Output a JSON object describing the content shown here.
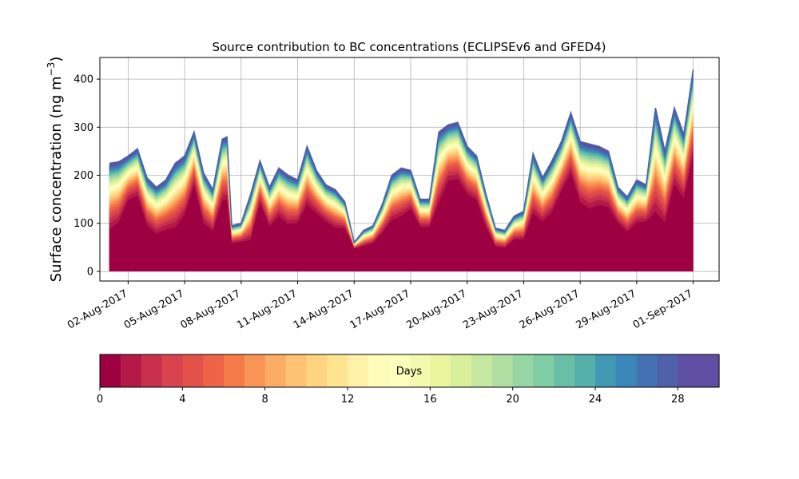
{
  "chart_data": [
    {
      "type": "area",
      "stacked": true,
      "title": "Source contribution to BC concentrations (ECLIPSEv6 and GFED4)",
      "ylabel": "Surface concentration (ng m",
      "ylabel_superscript": "−3",
      "ylabel_close": ")",
      "ylim": [
        -20,
        445
      ],
      "y_ticks": [
        "0",
        "100",
        "200",
        "300",
        "400"
      ],
      "y_tick_values": [
        0,
        100,
        200,
        300,
        400
      ],
      "x_ticks": [
        "02-Aug-2017",
        "05-Aug-2017",
        "08-Aug-2017",
        "11-Aug-2017",
        "14-Aug-2017",
        "17-Aug-2017",
        "20-Aug-2017",
        "23-Aug-2017",
        "26-Aug-2017",
        "29-Aug-2017",
        "01-Sep-2017"
      ],
      "x_tick_dates": [
        "2017-08-02",
        "2017-08-05",
        "2017-08-08",
        "2017-08-11",
        "2017-08-14",
        "2017-08-17",
        "2017-08-20",
        "2017-08-23",
        "2017-08-26",
        "2017-08-29",
        "2017-09-01"
      ],
      "xlim": [
        "2017-07-31T12:00",
        "2017-09-02T09:00"
      ],
      "grid": true,
      "series_layers": 30,
      "total": {
        "x": [
          "2017-08-01T00:00",
          "2017-08-01T12:00",
          "2017-08-02T00:00",
          "2017-08-02T12:00",
          "2017-08-03T00:00",
          "2017-08-03T12:00",
          "2017-08-04T00:00",
          "2017-08-04T12:00",
          "2017-08-05T00:00",
          "2017-08-05T12:00",
          "2017-08-06T00:00",
          "2017-08-06T12:00",
          "2017-08-07T00:00",
          "2017-08-07T06:00",
          "2017-08-07T12:00",
          "2017-08-08T00:00",
          "2017-08-08T12:00",
          "2017-08-09T00:00",
          "2017-08-09T12:00",
          "2017-08-10T00:00",
          "2017-08-10T12:00",
          "2017-08-11T00:00",
          "2017-08-11T12:00",
          "2017-08-12T00:00",
          "2017-08-12T12:00",
          "2017-08-13T00:00",
          "2017-08-13T12:00",
          "2017-08-14T00:00",
          "2017-08-14T12:00",
          "2017-08-15T00:00",
          "2017-08-15T12:00",
          "2017-08-16T00:00",
          "2017-08-16T12:00",
          "2017-08-17T00:00",
          "2017-08-17T12:00",
          "2017-08-18T00:00",
          "2017-08-18T12:00",
          "2017-08-19T00:00",
          "2017-08-19T12:00",
          "2017-08-20T00:00",
          "2017-08-20T12:00",
          "2017-08-21T00:00",
          "2017-08-21T12:00",
          "2017-08-22T00:00",
          "2017-08-22T12:00",
          "2017-08-23T00:00",
          "2017-08-23T12:00",
          "2017-08-24T00:00",
          "2017-08-24T12:00",
          "2017-08-25T00:00",
          "2017-08-25T12:00",
          "2017-08-26T00:00",
          "2017-08-26T12:00",
          "2017-08-27T00:00",
          "2017-08-27T12:00",
          "2017-08-28T00:00",
          "2017-08-28T12:00",
          "2017-08-29T00:00",
          "2017-08-29T12:00",
          "2017-08-30T00:00",
          "2017-08-30T12:00",
          "2017-08-31T00:00",
          "2017-08-31T12:00",
          "2017-09-01T00:00"
        ],
        "y": [
          225,
          228,
          240,
          255,
          195,
          175,
          190,
          225,
          240,
          290,
          205,
          170,
          275,
          280,
          95,
          100,
          160,
          230,
          175,
          215,
          200,
          190,
          260,
          210,
          180,
          170,
          145,
          60,
          85,
          95,
          140,
          200,
          215,
          210,
          150,
          150,
          290,
          305,
          310,
          260,
          240,
          160,
          90,
          85,
          115,
          125,
          245,
          195,
          230,
          270,
          330,
          270,
          265,
          260,
          250,
          175,
          155,
          190,
          180,
          340,
          250,
          340,
          285,
          420
        ]
      },
      "base_fraction": [
        0.28,
        0.35,
        0.55,
        0.55,
        0.4,
        0.35,
        0.36,
        0.3,
        0.4,
        0.55,
        0.4,
        0.4,
        0.45,
        0.45,
        0.55,
        0.55,
        0.3,
        0.55,
        0.45,
        0.45,
        0.4,
        0.45,
        0.45,
        0.5,
        0.5,
        0.45,
        0.55,
        0.75,
        0.55,
        0.55,
        0.5,
        0.45,
        0.45,
        0.55,
        0.55,
        0.55,
        0.4,
        0.55,
        0.55,
        0.55,
        0.55,
        0.5,
        0.5,
        0.5,
        0.5,
        0.45,
        0.4,
        0.45,
        0.45,
        0.55,
        0.55,
        0.45,
        0.4,
        0.45,
        0.45,
        0.5,
        0.45,
        0.45,
        0.5,
        0.25,
        0.3,
        0.45,
        0.45,
        0.5
      ],
      "colorbar": {
        "label": "Days",
        "min": 0,
        "max": 30,
        "ticks": [
          "0",
          "4",
          "8",
          "12",
          "16",
          "20",
          "24",
          "28"
        ],
        "tick_values": [
          0,
          4,
          8,
          12,
          16,
          20,
          24,
          28
        ],
        "colormap": "Spectral",
        "colors": [
          "#9e0142",
          "#b41947",
          "#c9304b",
          "#d8434e",
          "#e25249",
          "#ec6445",
          "#f57b4a",
          "#f99457",
          "#fcac64",
          "#fdc273",
          "#fed481",
          "#fee491",
          "#fff1a7",
          "#fffbb9",
          "#fefebd",
          "#f4faad",
          "#eaf69e",
          "#d9ef9b",
          "#c5e7a0",
          "#b1dfa3",
          "#98d5a4",
          "#80cca5",
          "#69bea8",
          "#55b0ac",
          "#4098b3",
          "#3a86b9",
          "#4471b2",
          "#5061a9",
          "#5e4fa2",
          "#5e4fa2"
        ]
      }
    }
  ]
}
